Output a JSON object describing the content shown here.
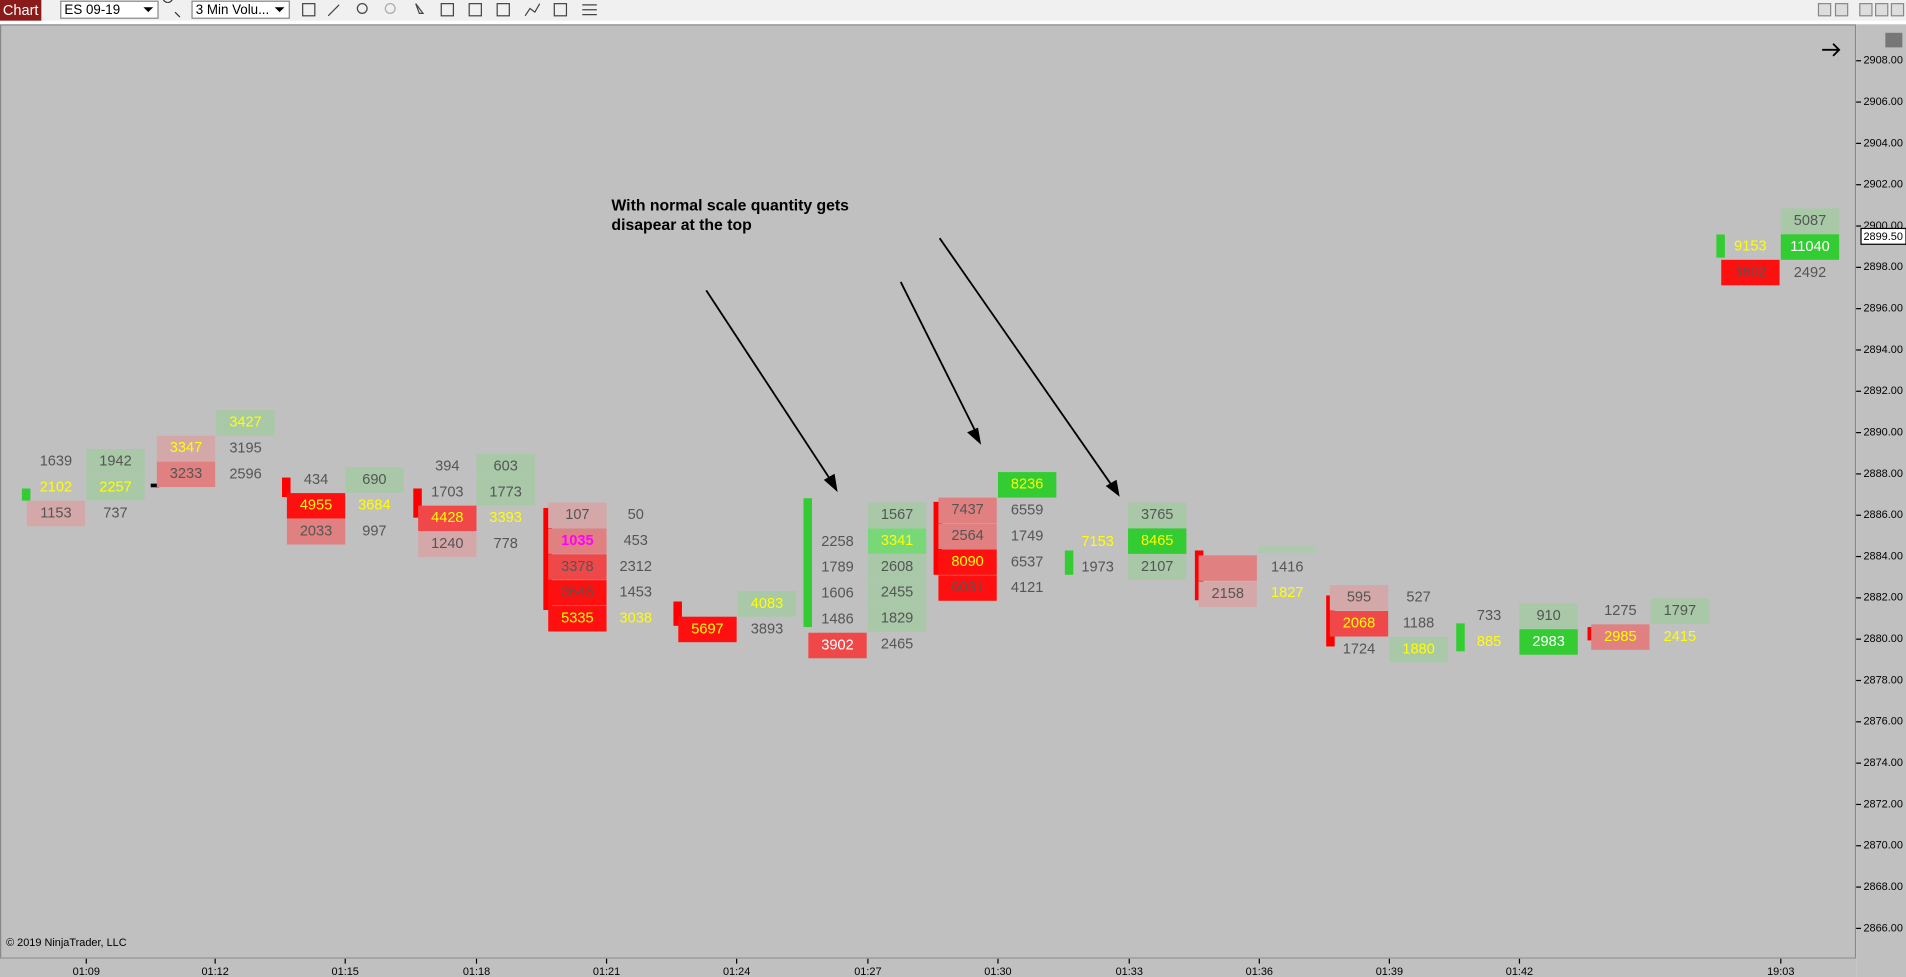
{
  "toolbar": {
    "tab": "Chart",
    "instrument": "ES 09-19",
    "period": "3 Min Volu..."
  },
  "annotation": [
    "With normal scale quantity gets",
    "disapear at the top"
  ],
  "price_axis": {
    "labels": [
      "2908.00",
      "2906.00",
      "2904.00",
      "2902.00",
      "2900.00",
      "2898.00",
      "2896.00",
      "2894.00",
      "2892.00",
      "2890.00",
      "2888.00",
      "2886.00",
      "2884.00",
      "2882.00",
      "2880.00",
      "2878.00",
      "2876.00",
      "2874.00",
      "2872.00",
      "2870.00",
      "2868.00",
      "2866.00"
    ],
    "current": "2899.50"
  },
  "time_axis": {
    "labels": [
      "01:09",
      "01:12",
      "01:15",
      "01:18",
      "01:21",
      "01:24",
      "01:27",
      "01:30",
      "01:33",
      "01:36",
      "01:39",
      "01:42",
      "19:03"
    ]
  },
  "footprint": {
    "columns": [
      [
        1639,
        2102,
        1153
      ],
      [
        1942,
        2257,
        737
      ],
      [
        3347,
        3233
      ],
      [
        3427,
        3195,
        2596
      ],
      [
        434,
        4955,
        2033
      ],
      [
        690,
        3684,
        997
      ],
      [
        394,
        1703,
        4428,
        1240
      ],
      [
        603,
        1773,
        3393,
        778
      ],
      [
        107,
        1035,
        3378,
        3648,
        5335
      ],
      [
        50,
        453,
        2312,
        1453,
        3038
      ],
      [
        5697
      ],
      [
        4083,
        3893
      ],
      [
        2258,
        1789,
        1606,
        1486,
        3902
      ],
      [
        1567,
        3341,
        2608,
        2455,
        1829,
        2465
      ],
      [
        7437,
        2564,
        8090,
        6031
      ],
      [
        8236,
        6559,
        1749,
        6537,
        4121
      ],
      [
        7153,
        1973
      ],
      [
        3765,
        8465,
        2107
      ],
      [
        2158
      ],
      [
        1416,
        1827
      ],
      [
        595,
        2068,
        1724
      ],
      [
        527,
        1188,
        1880
      ],
      [
        733,
        885
      ],
      [
        910,
        2983
      ],
      [
        1275,
        2985
      ],
      [
        1797,
        2415
      ],
      [
        9153,
        3602
      ],
      [
        5087,
        11040,
        2492
      ]
    ]
  },
  "copyright": "© 2019 NinjaTrader, LLC"
}
